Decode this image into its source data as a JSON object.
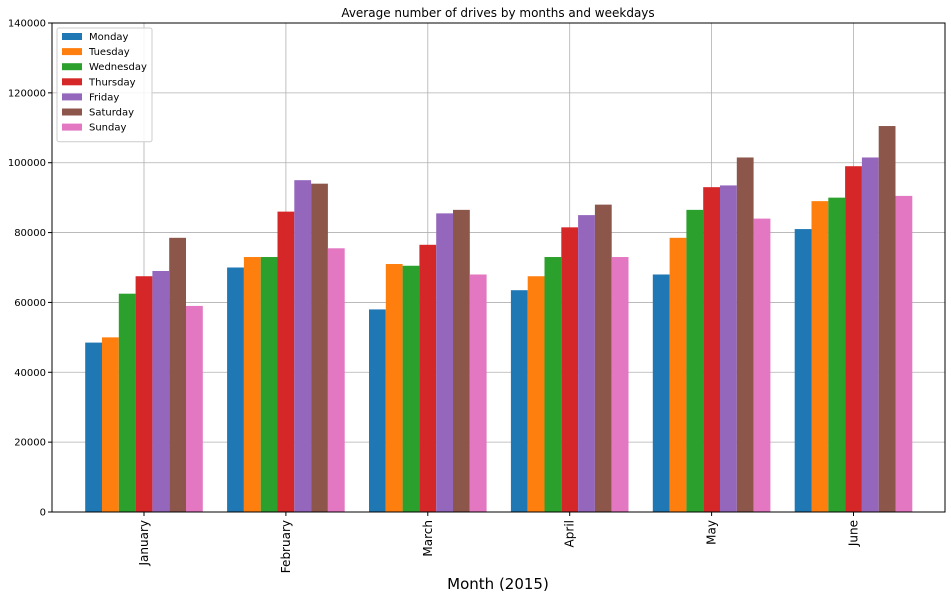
{
  "chart_data": {
    "type": "bar",
    "title": "Average number of drives by months and weekdays",
    "xlabel": "Month (2015)",
    "ylabel": "",
    "ylim": [
      0,
      140000
    ],
    "yticks": [
      0,
      20000,
      40000,
      60000,
      80000,
      100000,
      120000,
      140000
    ],
    "grid": true,
    "legend_position": "top-left",
    "categories": [
      "January",
      "February",
      "March",
      "April",
      "May",
      "June"
    ],
    "series": [
      {
        "name": "Monday",
        "color": "#1f77b4",
        "values": [
          48500,
          70000,
          58000,
          63500,
          68000,
          81000
        ]
      },
      {
        "name": "Tuesday",
        "color": "#ff7f0e",
        "values": [
          50000,
          73000,
          71000,
          67500,
          78500,
          89000
        ]
      },
      {
        "name": "Wednesday",
        "color": "#2ca02c",
        "values": [
          62500,
          73000,
          70500,
          73000,
          86500,
          90000
        ]
      },
      {
        "name": "Thursday",
        "color": "#d62728",
        "values": [
          67500,
          86000,
          76500,
          81500,
          93000,
          99000
        ]
      },
      {
        "name": "Friday",
        "color": "#9467bd",
        "values": [
          69000,
          95000,
          85500,
          85000,
          93500,
          101500
        ]
      },
      {
        "name": "Saturday",
        "color": "#8c564b",
        "values": [
          78500,
          94000,
          86500,
          88000,
          101500,
          110500
        ]
      },
      {
        "name": "Sunday",
        "color": "#e377c2",
        "values": [
          59000,
          75500,
          68000,
          73000,
          84000,
          90500
        ]
      }
    ]
  }
}
